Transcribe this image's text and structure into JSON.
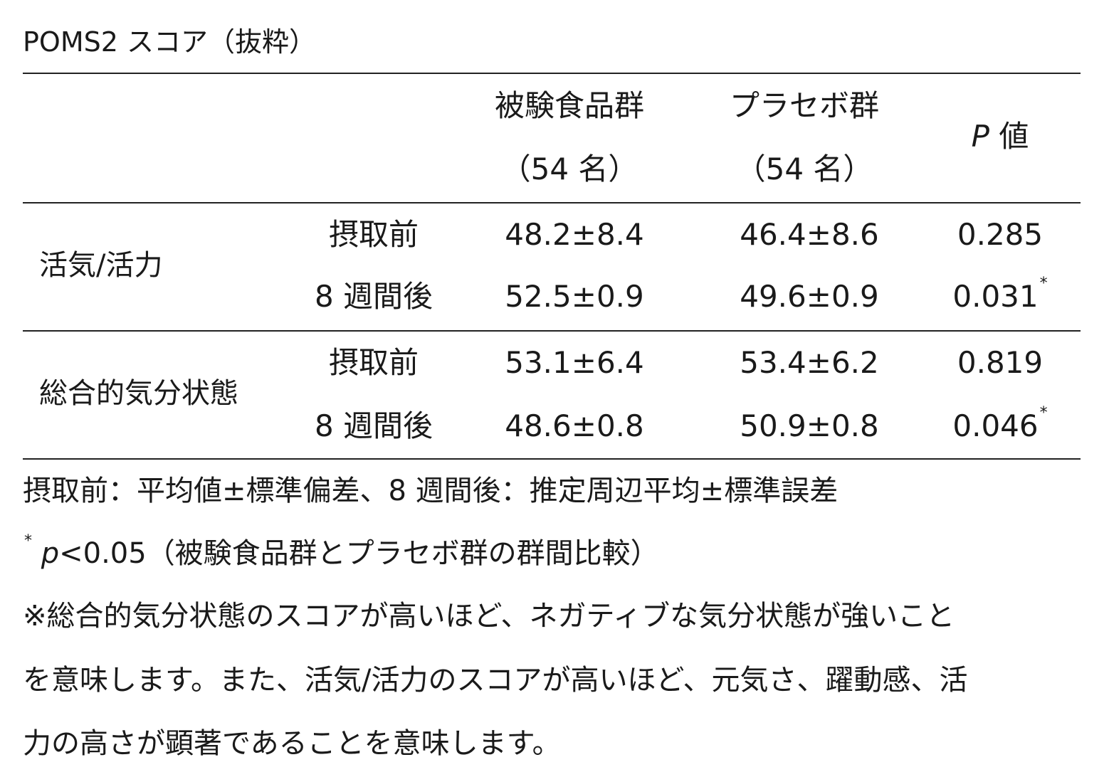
{
  "title": "POMS2 スコア（抜粋）",
  "header": {
    "group1_name": "被験食品群",
    "group1_n": "（54 名）",
    "group2_name": "プラセボ群",
    "group2_n": "（54 名）",
    "p_label_italic": "P",
    "p_label_rest": " 値"
  },
  "rows": [
    {
      "category": "活気/活力",
      "sub": [
        {
          "time": "摂取前",
          "g1": "48.2±8.4",
          "g2": "46.4±8.6",
          "p": "0.285",
          "mark": ""
        },
        {
          "time": "8 週間後",
          "g1": "52.5±0.9",
          "g2": "49.6±0.9",
          "p": "0.031",
          "mark": "*"
        }
      ]
    },
    {
      "category": "総合的気分状態",
      "sub": [
        {
          "time": "摂取前",
          "g1": "53.1±6.4",
          "g2": "53.4±6.2",
          "p": "0.819",
          "mark": ""
        },
        {
          "time": "8 週間後",
          "g1": "48.6±0.8",
          "g2": "50.9±0.8",
          "p": "0.046",
          "mark": "*"
        }
      ]
    }
  ],
  "notes": {
    "line1": "摂取前：平均値±標準偏差、8 週間後：推定周辺平均±標準誤差",
    "sig_mark": "*",
    "sig_p": "p",
    "sig_rest": "<0.05（被験食品群とプラセボ群の群間比較）",
    "explain_lines": [
      "※総合的気分状態のスコアが高いほど、ネガティブな気分状態が強いこと",
      "を意味します。また、活気/活力のスコアが高いほど、元気さ、躍動感、活",
      "力の高さが顕著であることを意味します。"
    ]
  }
}
